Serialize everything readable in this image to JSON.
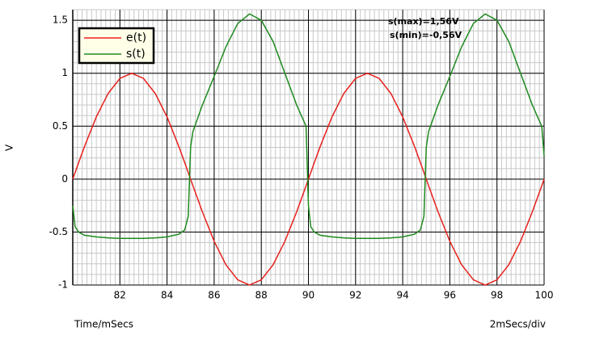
{
  "chart_data": {
    "type": "line",
    "y_label": "V",
    "x_label": "Time/mSecs",
    "scale_label": "2mSecs/div",
    "annotations": [
      "s(max)=1,56V",
      "s(min)=-0,56V"
    ],
    "x": [
      80,
      80.1,
      80.25,
      80.5,
      81,
      81.5,
      82,
      82.5,
      83,
      83.5,
      84,
      84.5,
      84.75,
      84.9,
      85,
      85.1,
      85.5,
      86,
      86.5,
      87,
      87.5,
      88,
      88.5,
      89,
      89.5,
      89.9,
      90,
      90.1,
      90.25,
      90.5,
      91,
      91.5,
      92,
      92.5,
      93,
      93.5,
      94,
      94.5,
      94.75,
      94.9,
      95,
      95.1,
      95.5,
      96,
      96.5,
      97,
      97.5,
      98,
      98.5,
      99,
      99.5,
      99.9,
      100
    ],
    "series": [
      {
        "name": "e(t)",
        "color": "#e8201c",
        "values": [
          0,
          0.063,
          0.156,
          0.309,
          0.588,
          0.809,
          0.951,
          1,
          0.951,
          0.809,
          0.588,
          0.309,
          0.156,
          0.063,
          0,
          -0.063,
          -0.309,
          -0.588,
          -0.809,
          -0.951,
          -1,
          -0.951,
          -0.809,
          -0.588,
          -0.309,
          -0.063,
          0,
          0.063,
          0.156,
          0.309,
          0.588,
          0.809,
          0.951,
          1,
          0.951,
          0.809,
          0.588,
          0.309,
          0.156,
          0.063,
          0,
          -0.063,
          -0.309,
          -0.588,
          -0.809,
          -0.951,
          -1,
          -0.951,
          -0.809,
          -0.588,
          -0.309,
          -0.063,
          0
        ]
      },
      {
        "name": "s(t)",
        "color": "#1f8a1f",
        "values": [
          -0.25,
          -0.45,
          -0.5,
          -0.53,
          -0.545,
          -0.555,
          -0.56,
          -0.56,
          -0.56,
          -0.555,
          -0.545,
          -0.52,
          -0.48,
          -0.35,
          0.3,
          0.45,
          0.7,
          0.97,
          1.25,
          1.47,
          1.56,
          1.5,
          1.3,
          1.0,
          0.7,
          0.5,
          -0.25,
          -0.45,
          -0.5,
          -0.53,
          -0.545,
          -0.555,
          -0.56,
          -0.56,
          -0.56,
          -0.555,
          -0.545,
          -0.52,
          -0.48,
          -0.35,
          0.3,
          0.45,
          0.7,
          0.97,
          1.25,
          1.47,
          1.56,
          1.5,
          1.3,
          1.0,
          0.7,
          0.5,
          0.22
        ]
      }
    ],
    "xlim": [
      80,
      100
    ],
    "xticks": [
      82,
      84,
      86,
      88,
      90,
      92,
      94,
      96,
      98,
      100
    ],
    "ylim": [
      -1,
      1.6
    ],
    "yticks": [
      -1,
      -0.5,
      0,
      0.5,
      1,
      1.5
    ],
    "grid": true,
    "legend": "upper left"
  }
}
